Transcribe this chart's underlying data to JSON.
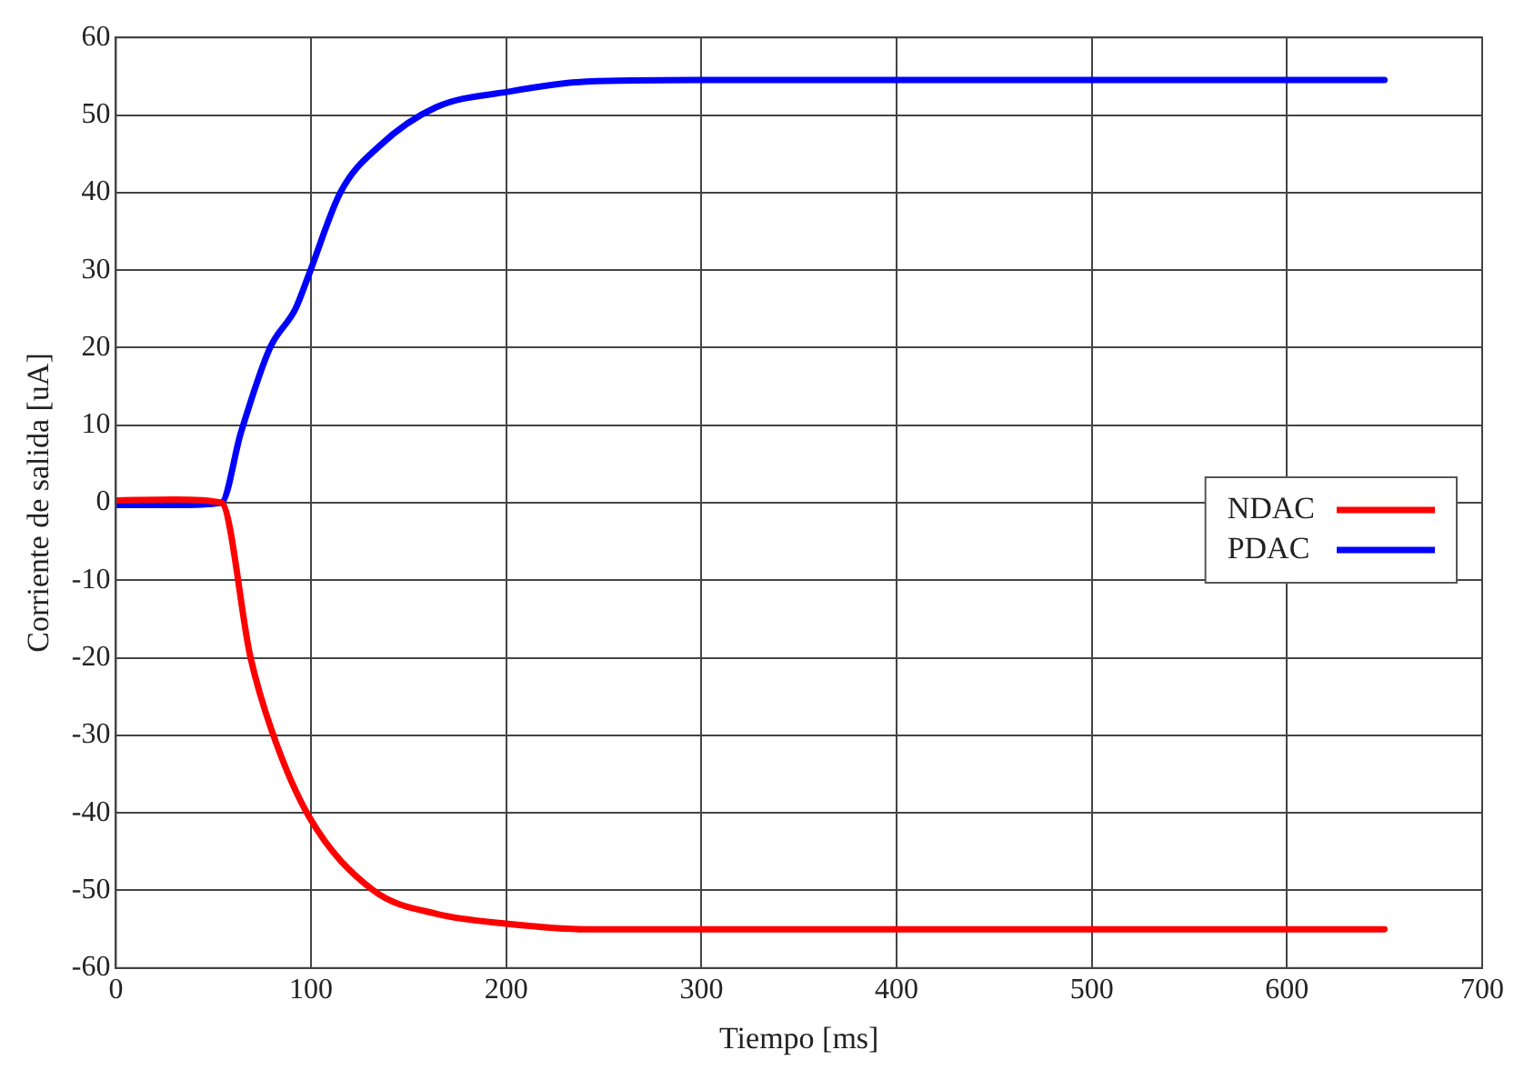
{
  "chart_data": {
    "type": "line",
    "xlabel": "Tiempo [ms]",
    "ylabel": "Corriente de salida [uA]",
    "xlim": [
      0,
      700
    ],
    "xticks": [
      0,
      100,
      200,
      300,
      400,
      500,
      600,
      700
    ],
    "ylim": [
      -60,
      60
    ],
    "yticks": [
      -60,
      -50,
      -40,
      -30,
      -20,
      -10,
      0,
      10,
      20,
      30,
      40,
      50,
      60
    ],
    "grid": true,
    "legend": "right",
    "marker": "none",
    "line_style": "solid",
    "series": [
      {
        "name": "NDAC",
        "color": "#ff0000",
        "x": [
          0,
          30,
          54,
          69,
          80,
          99,
          132,
          164,
          201,
          241,
          300,
          400,
          500,
          650
        ],
        "values": [
          0.3,
          0.4,
          0,
          -20,
          -29.5,
          -40.5,
          -50,
          -53,
          -54.3,
          -55,
          -55,
          -55,
          -55,
          -55
        ]
      },
      {
        "name": "PDAC",
        "color": "#0000ff",
        "x": [
          0,
          30,
          54,
          64,
          79,
          92,
          99,
          115,
          135,
          164,
          201,
          241,
          300,
          400,
          500,
          650
        ],
        "values": [
          -0.3,
          -0.3,
          0,
          9,
          20,
          25,
          29.5,
          40,
          46,
          51,
          53,
          54.3,
          54.5,
          54.5,
          54.5,
          54.5
        ]
      }
    ]
  }
}
